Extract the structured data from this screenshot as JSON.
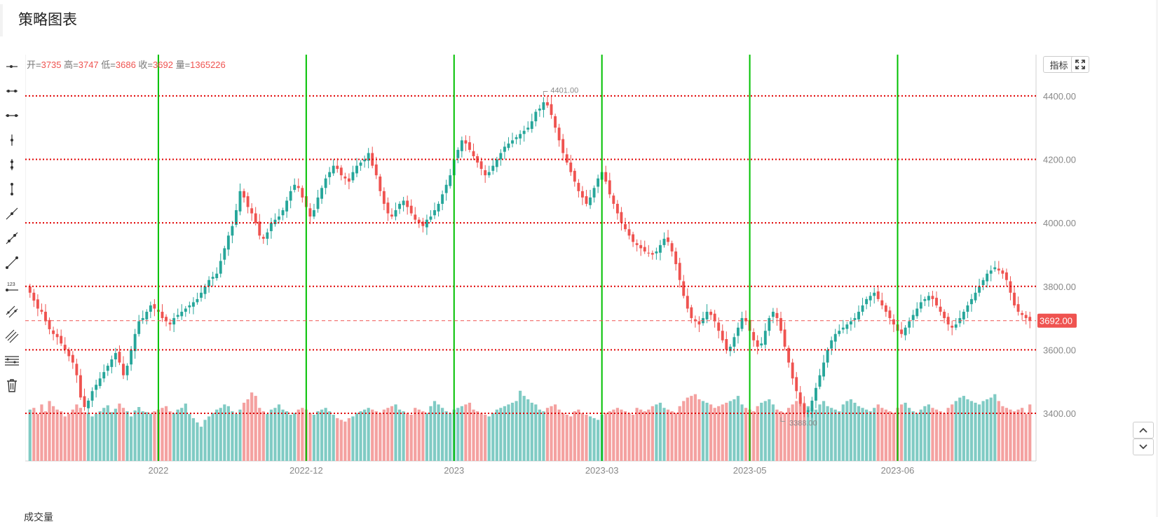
{
  "page": {
    "title": "策略图表",
    "footer_label": "成交量"
  },
  "ohlc": {
    "open_label": "开=",
    "open": "3735",
    "high_label": "高=",
    "high": "3747",
    "low_label": "低=",
    "low": "3686",
    "close_label": "收=",
    "close": "3692",
    "vol_label": "量=",
    "vol": "1365226"
  },
  "buttons": {
    "indicator": "指标"
  },
  "toolbar": [
    "horizontal-ray",
    "horizontal-segment",
    "horizontal-line",
    "vertical-ray",
    "vertical-segment",
    "vertical-line",
    "ray",
    "segment",
    "straight-line",
    "price-line",
    "parallel-channel",
    "fibonacci",
    "grid-lines",
    "delete"
  ],
  "colors": {
    "up": "#26a69a",
    "down": "#ef5350",
    "vgrid": "#00c000",
    "hgrid": "#e00000",
    "vol_up": "#80cbc4",
    "vol_down": "#f4a1a0"
  },
  "chart_data": {
    "type": "candlestick",
    "y_axis": {
      "min": 3250,
      "max": 4530,
      "ticks": [
        "3400.00",
        "3600.00",
        "3800.00",
        "4000.00",
        "4200.00",
        "4400.00"
      ],
      "tick_values": [
        3400,
        3600,
        3800,
        4000,
        4200,
        4400
      ]
    },
    "x_axis": {
      "labels": [
        "2022",
        "2022-12",
        "2023",
        "2023-03",
        "2023-05",
        "2023-06"
      ],
      "label_index": [
        33,
        71,
        109,
        147,
        185,
        223
      ]
    },
    "vertical_lines_index": [
      33,
      71,
      109,
      147,
      185,
      223
    ],
    "horizontal_lines": [
      3400,
      3600,
      3800,
      4000,
      4200,
      4400
    ],
    "current_price": "3692.00",
    "current_value": 3692,
    "high_marker": {
      "text": "4401.00",
      "index": 132,
      "value": 4401
    },
    "low_marker": {
      "text": "3388.00",
      "index": 193,
      "value": 3388
    },
    "close_series": [
      3780,
      3755,
      3730,
      3720,
      3690,
      3665,
      3650,
      3640,
      3620,
      3600,
      3580,
      3560,
      3520,
      3450,
      3420,
      3440,
      3470,
      3490,
      3510,
      3530,
      3550,
      3570,
      3590,
      3560,
      3520,
      3550,
      3600,
      3650,
      3690,
      3700,
      3720,
      3740,
      3730,
      3720,
      3700,
      3690,
      3680,
      3700,
      3710,
      3720,
      3730,
      3740,
      3750,
      3760,
      3780,
      3800,
      3820,
      3830,
      3840,
      3880,
      3920,
      3960,
      3990,
      4040,
      4100,
      4080,
      4050,
      4030,
      4000,
      3960,
      3950,
      3970,
      4000,
      4010,
      4020,
      4040,
      4070,
      4100,
      4120,
      4110,
      4080,
      4050,
      4020,
      4040,
      4080,
      4110,
      4140,
      4160,
      4180,
      4170,
      4150,
      4140,
      4130,
      4160,
      4180,
      4190,
      4200,
      4220,
      4180,
      4150,
      4100,
      4060,
      4030,
      4020,
      4040,
      4060,
      4070,
      4050,
      4030,
      4010,
      4000,
      3990,
      4010,
      4020,
      4040,
      4060,
      4090,
      4120,
      4150,
      4200,
      4230,
      4260,
      4250,
      4230,
      4210,
      4190,
      4170,
      4150,
      4160,
      4180,
      4200,
      4220,
      4240,
      4250,
      4260,
      4270,
      4280,
      4290,
      4300,
      4320,
      4350,
      4360,
      4380,
      4370,
      4340,
      4300,
      4260,
      4220,
      4190,
      4160,
      4130,
      4100,
      4080,
      4060,
      4080,
      4110,
      4140,
      4160,
      4130,
      4090,
      4060,
      4030,
      4000,
      3980,
      3960,
      3940,
      3930,
      3920,
      3910,
      3905,
      3900,
      3910,
      3930,
      3950,
      3940,
      3910,
      3870,
      3820,
      3770,
      3730,
      3700,
      3690,
      3680,
      3700,
      3720,
      3710,
      3690,
      3660,
      3630,
      3600,
      3610,
      3640,
      3670,
      3700,
      3690,
      3660,
      3630,
      3610,
      3620,
      3660,
      3700,
      3720,
      3700,
      3660,
      3610,
      3560,
      3510,
      3470,
      3430,
      3400,
      3410,
      3440,
      3480,
      3520,
      3560,
      3600,
      3630,
      3650,
      3660,
      3670,
      3680,
      3690,
      3700,
      3720,
      3740,
      3760,
      3770,
      3780,
      3760,
      3740,
      3720,
      3700,
      3680,
      3660,
      3650,
      3670,
      3690,
      3710,
      3730,
      3750,
      3760,
      3770,
      3760,
      3740,
      3720,
      3700,
      3680,
      3670,
      3680,
      3700,
      3720,
      3740,
      3760,
      3780,
      3800,
      3820,
      3840,
      3850,
      3860,
      3850,
      3840,
      3820,
      3780,
      3740,
      3720,
      3710,
      3700,
      3692
    ],
    "volume_series": [
      60,
      62,
      55,
      66,
      58,
      70,
      64,
      60,
      58,
      52,
      55,
      60,
      66,
      62,
      57,
      56,
      52,
      55,
      58,
      62,
      65,
      57,
      61,
      67,
      62,
      58,
      52,
      59,
      63,
      58,
      57,
      55,
      58,
      60,
      62,
      64,
      58,
      56,
      60,
      62,
      67,
      55,
      50,
      45,
      40,
      48,
      52,
      56,
      60,
      62,
      66,
      64,
      58,
      55,
      60,
      68,
      72,
      80,
      76,
      62,
      58,
      55,
      60,
      62,
      66,
      60,
      58,
      54,
      56,
      60,
      62,
      60,
      56,
      54,
      58,
      60,
      62,
      58,
      54,
      50,
      48,
      46,
      50,
      52,
      56,
      58,
      60,
      62,
      60,
      58,
      56,
      60,
      62,
      64,
      66,
      60,
      58,
      56,
      54,
      62,
      60,
      58,
      56,
      64,
      70,
      66,
      62,
      58,
      56,
      60,
      62,
      64,
      66,
      68,
      60,
      58,
      56,
      54,
      52,
      56,
      60,
      62,
      64,
      66,
      68,
      70,
      82,
      76,
      72,
      68,
      66,
      60,
      58,
      62,
      64,
      66,
      60,
      56,
      54,
      52,
      58,
      60,
      56,
      54,
      52,
      50,
      48,
      54,
      56,
      58,
      60,
      62,
      60,
      58,
      56,
      54,
      62,
      60,
      58,
      60,
      64,
      66,
      68,
      62,
      60,
      58,
      56,
      64,
      70,
      74,
      76,
      78,
      72,
      70,
      68,
      66,
      62,
      64,
      66,
      68,
      70,
      72,
      76,
      66,
      62,
      60,
      58,
      64,
      68,
      70,
      72,
      66,
      60,
      58,
      56,
      62,
      66,
      70,
      74,
      68,
      64,
      62,
      60,
      66,
      70,
      64,
      62,
      60,
      58,
      66,
      70,
      72,
      68,
      64,
      62,
      60,
      58,
      62,
      66,
      62,
      60,
      58,
      56,
      62,
      66,
      68,
      62,
      58,
      56,
      60,
      64,
      66,
      62,
      60,
      58,
      56,
      62,
      66,
      70,
      74,
      76,
      72,
      70,
      68,
      66,
      70,
      72,
      74,
      78,
      70,
      64,
      62,
      60,
      58
    ]
  }
}
